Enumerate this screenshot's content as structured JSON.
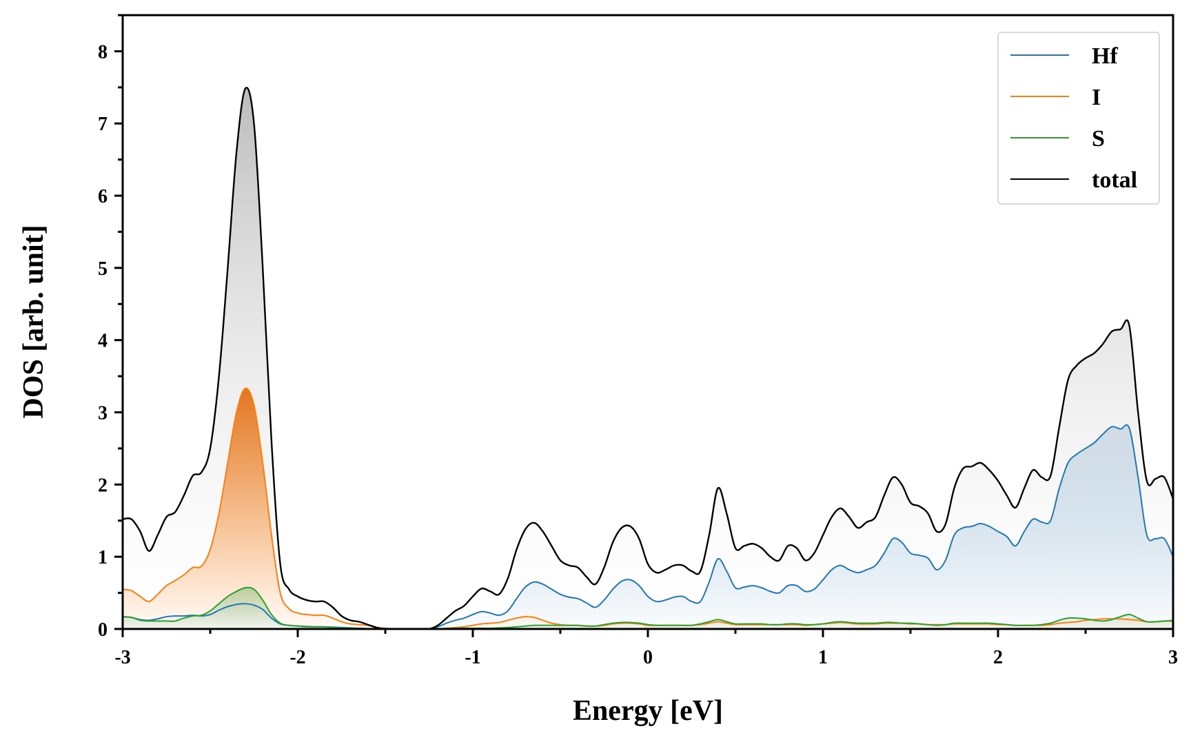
{
  "chart_data": {
    "type": "line",
    "title": "",
    "xlabel": "Energy [eV]",
    "ylabel": "DOS [arb. unit]",
    "xlim": [
      -3,
      3
    ],
    "ylim": [
      0,
      8.5
    ],
    "grid": false,
    "legend_position": "top-right",
    "x_start": -3,
    "x_step": 0.05,
    "xticks": [
      "-3",
      "-2",
      "-1",
      "0",
      "1",
      "2",
      "3"
    ],
    "yticks": [
      "0",
      "1",
      "2",
      "3",
      "4",
      "5",
      "6",
      "7",
      "8"
    ],
    "series": [
      {
        "name": "Hf",
        "color": "#1f77b4",
        "fill": true,
        "values": [
          0.17,
          0.16,
          0.13,
          0.12,
          0.14,
          0.17,
          0.18,
          0.18,
          0.19,
          0.18,
          0.2,
          0.26,
          0.31,
          0.34,
          0.35,
          0.33,
          0.27,
          0.15,
          0.07,
          0.05,
          0.04,
          0.035,
          0.03,
          0.03,
          0.025,
          0.02,
          0.015,
          0.01,
          0.005,
          0,
          0,
          0,
          0,
          0,
          0,
          0,
          0.03,
          0.08,
          0.12,
          0.15,
          0.2,
          0.24,
          0.22,
          0.19,
          0.25,
          0.42,
          0.58,
          0.65,
          0.62,
          0.55,
          0.48,
          0.44,
          0.42,
          0.36,
          0.3,
          0.4,
          0.55,
          0.66,
          0.68,
          0.6,
          0.45,
          0.38,
          0.4,
          0.44,
          0.45,
          0.38,
          0.38,
          0.65,
          0.97,
          0.8,
          0.57,
          0.58,
          0.6,
          0.57,
          0.52,
          0.5,
          0.6,
          0.6,
          0.52,
          0.55,
          0.68,
          0.82,
          0.88,
          0.82,
          0.78,
          0.82,
          0.88,
          1.05,
          1.25,
          1.2,
          1.05,
          1.02,
          0.98,
          0.82,
          0.95,
          1.3,
          1.4,
          1.42,
          1.46,
          1.42,
          1.35,
          1.28,
          1.15,
          1.35,
          1.52,
          1.48,
          1.5,
          1.95,
          2.3,
          2.42,
          2.5,
          2.58,
          2.7,
          2.8,
          2.77,
          2.78,
          2.1,
          1.3,
          1.25,
          1.25,
          1.0
        ]
      },
      {
        "name": "I",
        "color": "#ff7f0e",
        "fill": true,
        "values": [
          0.55,
          0.53,
          0.45,
          0.38,
          0.48,
          0.6,
          0.67,
          0.75,
          0.85,
          0.87,
          1.1,
          1.6,
          2.3,
          3.0,
          3.33,
          3.1,
          2.3,
          1.3,
          0.5,
          0.28,
          0.22,
          0.2,
          0.19,
          0.19,
          0.15,
          0.1,
          0.07,
          0.06,
          0.05,
          0.02,
          0.01,
          0,
          0,
          0,
          0,
          0,
          0,
          0.01,
          0.02,
          0.03,
          0.05,
          0.07,
          0.08,
          0.09,
          0.12,
          0.15,
          0.17,
          0.16,
          0.12,
          0.08,
          0.06,
          0.05,
          0.05,
          0.04,
          0.04,
          0.05,
          0.07,
          0.08,
          0.08,
          0.07,
          0.05,
          0.05,
          0.05,
          0.05,
          0.05,
          0.05,
          0.06,
          0.08,
          0.1,
          0.08,
          0.06,
          0.06,
          0.06,
          0.06,
          0.06,
          0.06,
          0.06,
          0.06,
          0.05,
          0.06,
          0.07,
          0.08,
          0.09,
          0.08,
          0.07,
          0.07,
          0.07,
          0.08,
          0.08,
          0.08,
          0.07,
          0.07,
          0.06,
          0.06,
          0.06,
          0.07,
          0.07,
          0.07,
          0.07,
          0.07,
          0.06,
          0.06,
          0.05,
          0.05,
          0.05,
          0.05,
          0.06,
          0.08,
          0.09,
          0.1,
          0.12,
          0.13,
          0.14,
          0.14,
          0.14,
          0.13,
          0.12,
          0.1,
          0.1,
          0.11,
          0.12
        ]
      },
      {
        "name": "S",
        "color": "#2ca02c",
        "fill": true,
        "values": [
          0.17,
          0.16,
          0.12,
          0.11,
          0.11,
          0.11,
          0.11,
          0.15,
          0.18,
          0.19,
          0.25,
          0.35,
          0.45,
          0.52,
          0.57,
          0.55,
          0.4,
          0.2,
          0.08,
          0.05,
          0.04,
          0.03,
          0.03,
          0.03,
          0.02,
          0.01,
          0.01,
          0.005,
          0,
          0,
          0,
          0,
          0,
          0,
          0,
          0,
          0,
          0.005,
          0.01,
          0.01,
          0.01,
          0.01,
          0.01,
          0.015,
          0.02,
          0.03,
          0.04,
          0.05,
          0.05,
          0.05,
          0.05,
          0.05,
          0.05,
          0.04,
          0.04,
          0.06,
          0.08,
          0.09,
          0.09,
          0.08,
          0.06,
          0.05,
          0.05,
          0.05,
          0.05,
          0.05,
          0.07,
          0.1,
          0.13,
          0.1,
          0.07,
          0.07,
          0.07,
          0.07,
          0.06,
          0.06,
          0.07,
          0.07,
          0.06,
          0.06,
          0.07,
          0.09,
          0.1,
          0.09,
          0.08,
          0.08,
          0.08,
          0.09,
          0.09,
          0.08,
          0.08,
          0.07,
          0.06,
          0.05,
          0.06,
          0.08,
          0.08,
          0.08,
          0.08,
          0.08,
          0.07,
          0.06,
          0.05,
          0.05,
          0.05,
          0.06,
          0.08,
          0.12,
          0.15,
          0.15,
          0.14,
          0.12,
          0.11,
          0.13,
          0.17,
          0.2,
          0.15,
          0.1,
          0.1,
          0.11,
          0.11
        ]
      },
      {
        "name": "total",
        "color": "#000000",
        "fill": true,
        "values": [
          1.52,
          1.52,
          1.35,
          1.08,
          1.3,
          1.55,
          1.62,
          1.85,
          2.12,
          2.17,
          2.5,
          3.5,
          5.0,
          6.6,
          7.48,
          7.0,
          5.0,
          2.6,
          0.9,
          0.55,
          0.45,
          0.4,
          0.38,
          0.38,
          0.3,
          0.18,
          0.12,
          0.1,
          0.06,
          0.02,
          0,
          0,
          0,
          0,
          0,
          0,
          0.05,
          0.15,
          0.25,
          0.32,
          0.45,
          0.56,
          0.52,
          0.48,
          0.7,
          1.1,
          1.38,
          1.47,
          1.35,
          1.15,
          0.95,
          0.88,
          0.85,
          0.72,
          0.62,
          0.85,
          1.2,
          1.4,
          1.42,
          1.25,
          0.9,
          0.78,
          0.82,
          0.88,
          0.88,
          0.8,
          0.8,
          1.3,
          1.95,
          1.6,
          1.12,
          1.15,
          1.18,
          1.12,
          1.0,
          0.95,
          1.15,
          1.12,
          0.95,
          1.05,
          1.3,
          1.55,
          1.67,
          1.55,
          1.4,
          1.48,
          1.55,
          1.85,
          2.1,
          2.0,
          1.75,
          1.7,
          1.6,
          1.35,
          1.45,
          1.95,
          2.22,
          2.25,
          2.3,
          2.2,
          2.05,
          1.85,
          1.68,
          1.95,
          2.2,
          2.1,
          2.12,
          2.8,
          3.45,
          3.65,
          3.75,
          3.82,
          3.95,
          4.12,
          4.15,
          4.2,
          3.0,
          2.05,
          2.08,
          2.1,
          1.8
        ]
      }
    ]
  }
}
